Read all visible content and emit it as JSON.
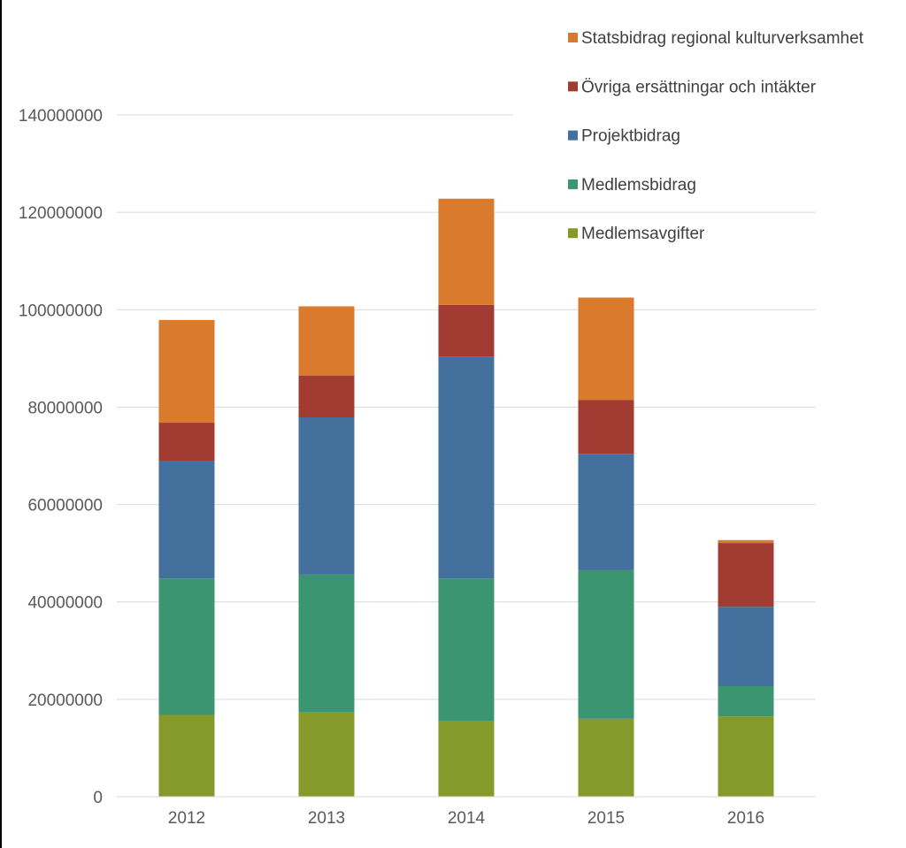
{
  "chart_data": {
    "type": "bar",
    "stacked": true,
    "title": "",
    "xlabel": "",
    "ylabel": "",
    "categories": [
      "2012",
      "2013",
      "2014",
      "2015",
      "2016"
    ],
    "ylim": [
      0,
      140000000
    ],
    "yticks": [
      "0",
      "20000000",
      "40000000",
      "60000000",
      "80000000",
      "100000000",
      "120000000",
      "140000000"
    ],
    "ytick_values": [
      0,
      20000000,
      40000000,
      60000000,
      80000000,
      100000000,
      120000000,
      140000000
    ],
    "grid": true,
    "legend_position": "top-right",
    "series": [
      {
        "name": "Medlemsavgifter",
        "color": "#86992B",
        "values": [
          16800000,
          17300000,
          15500000,
          16000000,
          16500000
        ]
      },
      {
        "name": "Medlemsbidrag",
        "color": "#3C9571",
        "values": [
          28000000,
          28300000,
          29300000,
          30500000,
          6200000
        ]
      },
      {
        "name": "Projektbidrag",
        "color": "#44709E",
        "values": [
          24200000,
          32300000,
          45600000,
          23900000,
          16300000
        ]
      },
      {
        "name": "Övriga ersättningar och intäkter",
        "color": "#A23B32",
        "values": [
          7800000,
          8600000,
          10600000,
          11100000,
          13100000
        ]
      },
      {
        "name": "Statsbidrag regional kulturverksamhet",
        "color": "#D97A2C",
        "values": [
          21100000,
          14200000,
          21800000,
          21000000,
          600000
        ]
      }
    ]
  }
}
